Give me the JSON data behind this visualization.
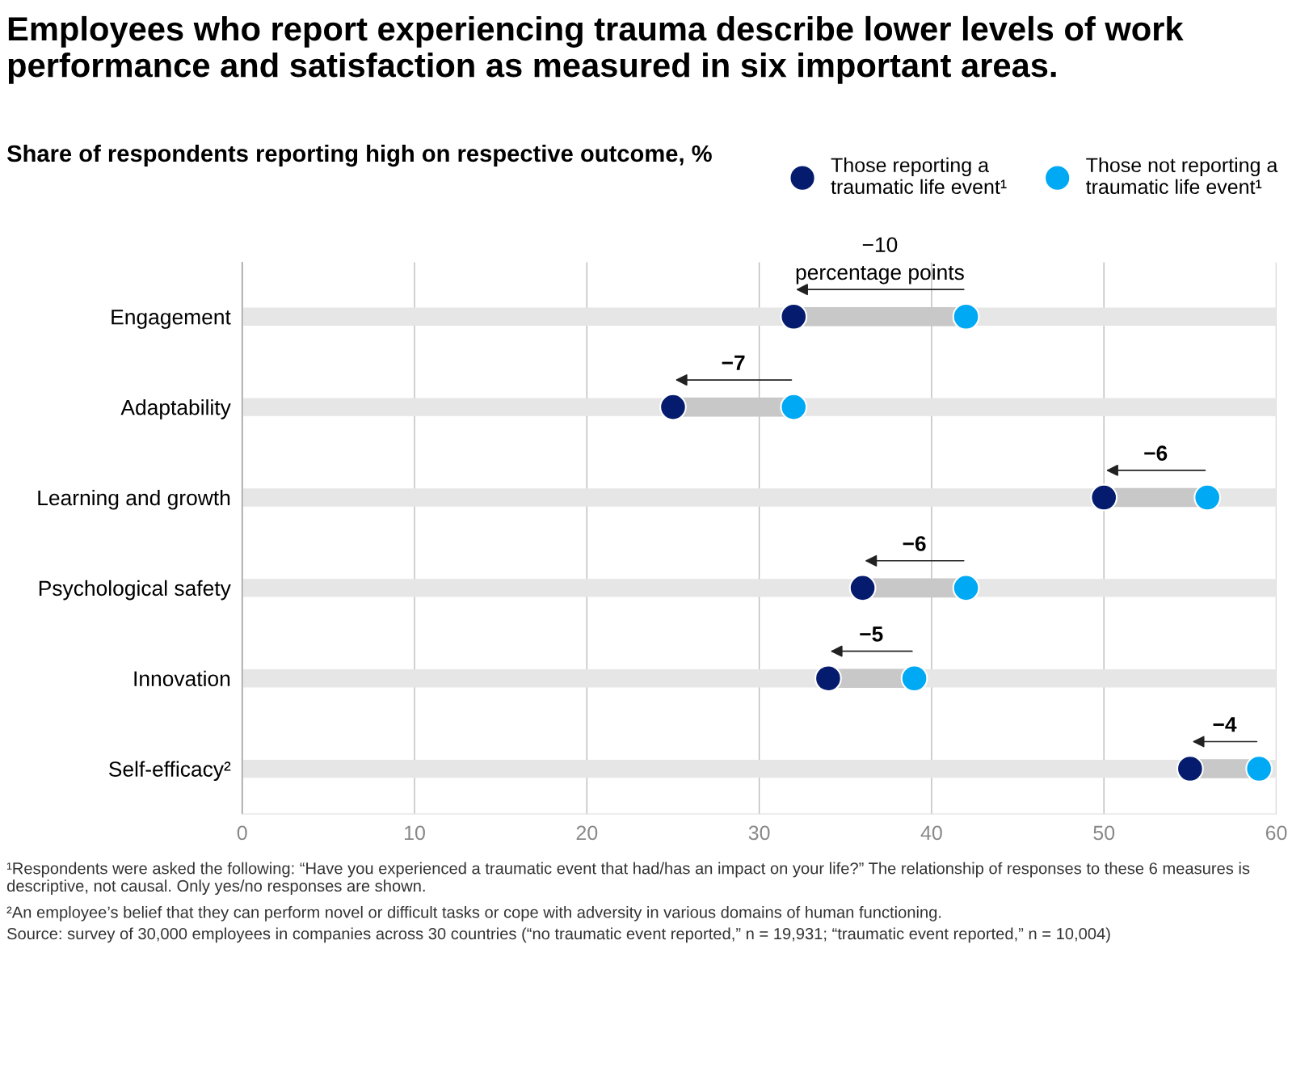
{
  "chart_data": {
    "type": "scatter",
    "orientation": "horizontal",
    "title": "Employees who report experiencing trauma describe lower levels of work performance and satisfaction as measured in six important areas.",
    "subtitle": "Share of respondents reporting high on respective outcome, %",
    "categories": [
      "Engagement",
      "Adaptability",
      "Learning and growth",
      "Psychological safety",
      "Innovation",
      "Self-efficacy²"
    ],
    "series": [
      {
        "type": "bar",
        "color": "#e6e6e6",
        "values": [
          60,
          60,
          60,
          60,
          60,
          60
        ]
      },
      {
        "name": "Those reporting a\ntraumatic life event¹",
        "color": "#051c6e",
        "values": [
          32,
          25,
          50,
          36,
          34,
          55
        ]
      },
      {
        "name": "Those not reporting a\ntraumatic life event¹",
        "color": "#00a9f4",
        "values": [
          42,
          32,
          56,
          42,
          39,
          59
        ]
      }
    ],
    "xlim": [
      0,
      60
    ],
    "xticks": [
      0,
      10,
      20,
      30,
      40,
      50,
      60
    ],
    "grid": "x",
    "legend": "top right",
    "marker": "circle",
    "annotations": [
      {
        "text": "−10\npercentage points",
        "x": 32,
        "y": "Engagement"
      },
      {
        "text": "−7",
        "x": 25,
        "y": "Adaptability"
      },
      {
        "text": "−6",
        "x": 50,
        "y": "Learning and growth"
      },
      {
        "text": "−6",
        "x": 36,
        "y": "Psychological safety"
      },
      {
        "text": "−5",
        "x": 34,
        "y": "Innovation"
      },
      {
        "text": "−4",
        "x": 55,
        "y": "Self-efficacy²"
      },
      "¹Respondents were asked the following: “Have you experienced a traumatic event that had/has an impact on your life?” The relationship of responses to these 6 measures is descriptive, not causal. Only yes/no responses are shown.",
      "²An employee’s belief that they can perform novel or difficult tasks or cope with adversity in various domains of human functioning.",
      "Source: survey of 30,000 employees in companies across 30 countries (“no traumatic event reported,” n = 19,931; “traumatic event reported,” n = 10,004)"
    ]
  }
}
